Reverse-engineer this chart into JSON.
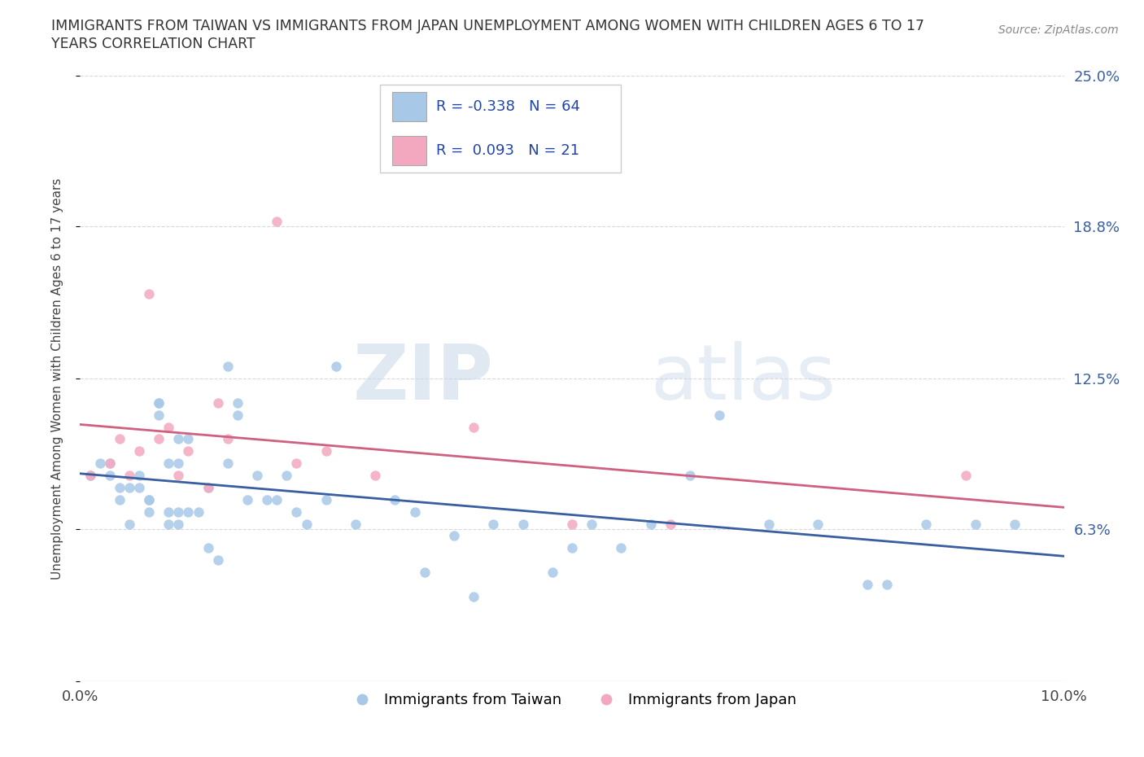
{
  "title_line1": "IMMIGRANTS FROM TAIWAN VS IMMIGRANTS FROM JAPAN UNEMPLOYMENT AMONG WOMEN WITH CHILDREN AGES 6 TO 17",
  "title_line2": "YEARS CORRELATION CHART",
  "source": "Source: ZipAtlas.com",
  "ylabel": "Unemployment Among Women with Children Ages 6 to 17 years",
  "xlim": [
    0.0,
    0.1
  ],
  "ylim": [
    0.0,
    0.25
  ],
  "xticks": [
    0.0,
    0.02,
    0.04,
    0.06,
    0.08,
    0.1
  ],
  "xticklabels": [
    "0.0%",
    "",
    "",
    "",
    "",
    "10.0%"
  ],
  "ytick_positions": [
    0.0,
    0.063,
    0.125,
    0.188,
    0.25
  ],
  "yticklabels": [
    "",
    "6.3%",
    "12.5%",
    "18.8%",
    "25.0%"
  ],
  "taiwan_color": "#a8c8e8",
  "japan_color": "#f4a8c0",
  "taiwan_line_color": "#3a5fa0",
  "japan_line_color": "#d06080",
  "taiwan_R": -0.338,
  "taiwan_N": 64,
  "japan_R": 0.093,
  "japan_N": 21,
  "taiwan_x": [
    0.001,
    0.002,
    0.003,
    0.003,
    0.004,
    0.004,
    0.005,
    0.005,
    0.006,
    0.006,
    0.007,
    0.007,
    0.007,
    0.008,
    0.008,
    0.008,
    0.009,
    0.009,
    0.009,
    0.01,
    0.01,
    0.01,
    0.01,
    0.011,
    0.011,
    0.012,
    0.013,
    0.013,
    0.014,
    0.015,
    0.015,
    0.016,
    0.016,
    0.017,
    0.018,
    0.019,
    0.02,
    0.021,
    0.022,
    0.023,
    0.025,
    0.026,
    0.028,
    0.032,
    0.034,
    0.035,
    0.038,
    0.04,
    0.042,
    0.045,
    0.048,
    0.05,
    0.052,
    0.055,
    0.058,
    0.062,
    0.065,
    0.07,
    0.075,
    0.08,
    0.082,
    0.086,
    0.091,
    0.095
  ],
  "taiwan_y": [
    0.085,
    0.09,
    0.085,
    0.09,
    0.075,
    0.08,
    0.065,
    0.08,
    0.08,
    0.085,
    0.07,
    0.075,
    0.075,
    0.11,
    0.115,
    0.115,
    0.065,
    0.07,
    0.09,
    0.065,
    0.07,
    0.09,
    0.1,
    0.07,
    0.1,
    0.07,
    0.055,
    0.08,
    0.05,
    0.09,
    0.13,
    0.11,
    0.115,
    0.075,
    0.085,
    0.075,
    0.075,
    0.085,
    0.07,
    0.065,
    0.075,
    0.13,
    0.065,
    0.075,
    0.07,
    0.045,
    0.06,
    0.035,
    0.065,
    0.065,
    0.045,
    0.055,
    0.065,
    0.055,
    0.065,
    0.085,
    0.11,
    0.065,
    0.065,
    0.04,
    0.04,
    0.065,
    0.065,
    0.065
  ],
  "japan_x": [
    0.001,
    0.003,
    0.004,
    0.005,
    0.006,
    0.007,
    0.008,
    0.009,
    0.01,
    0.011,
    0.013,
    0.014,
    0.015,
    0.02,
    0.022,
    0.025,
    0.03,
    0.04,
    0.05,
    0.06,
    0.09
  ],
  "japan_y": [
    0.085,
    0.09,
    0.1,
    0.085,
    0.095,
    0.16,
    0.1,
    0.105,
    0.085,
    0.095,
    0.08,
    0.115,
    0.1,
    0.19,
    0.09,
    0.095,
    0.085,
    0.105,
    0.065,
    0.065,
    0.085
  ],
  "watermark_zip": "ZIP",
  "watermark_atlas": "atlas",
  "background_color": "#ffffff",
  "grid_color": "#d8d8d8",
  "legend_label_taiwan": "Immigrants from Taiwan",
  "legend_label_japan": "Immigrants from Japan",
  "legend_box_color": "#f0f4ff",
  "legend_text_color": "#2244aa"
}
